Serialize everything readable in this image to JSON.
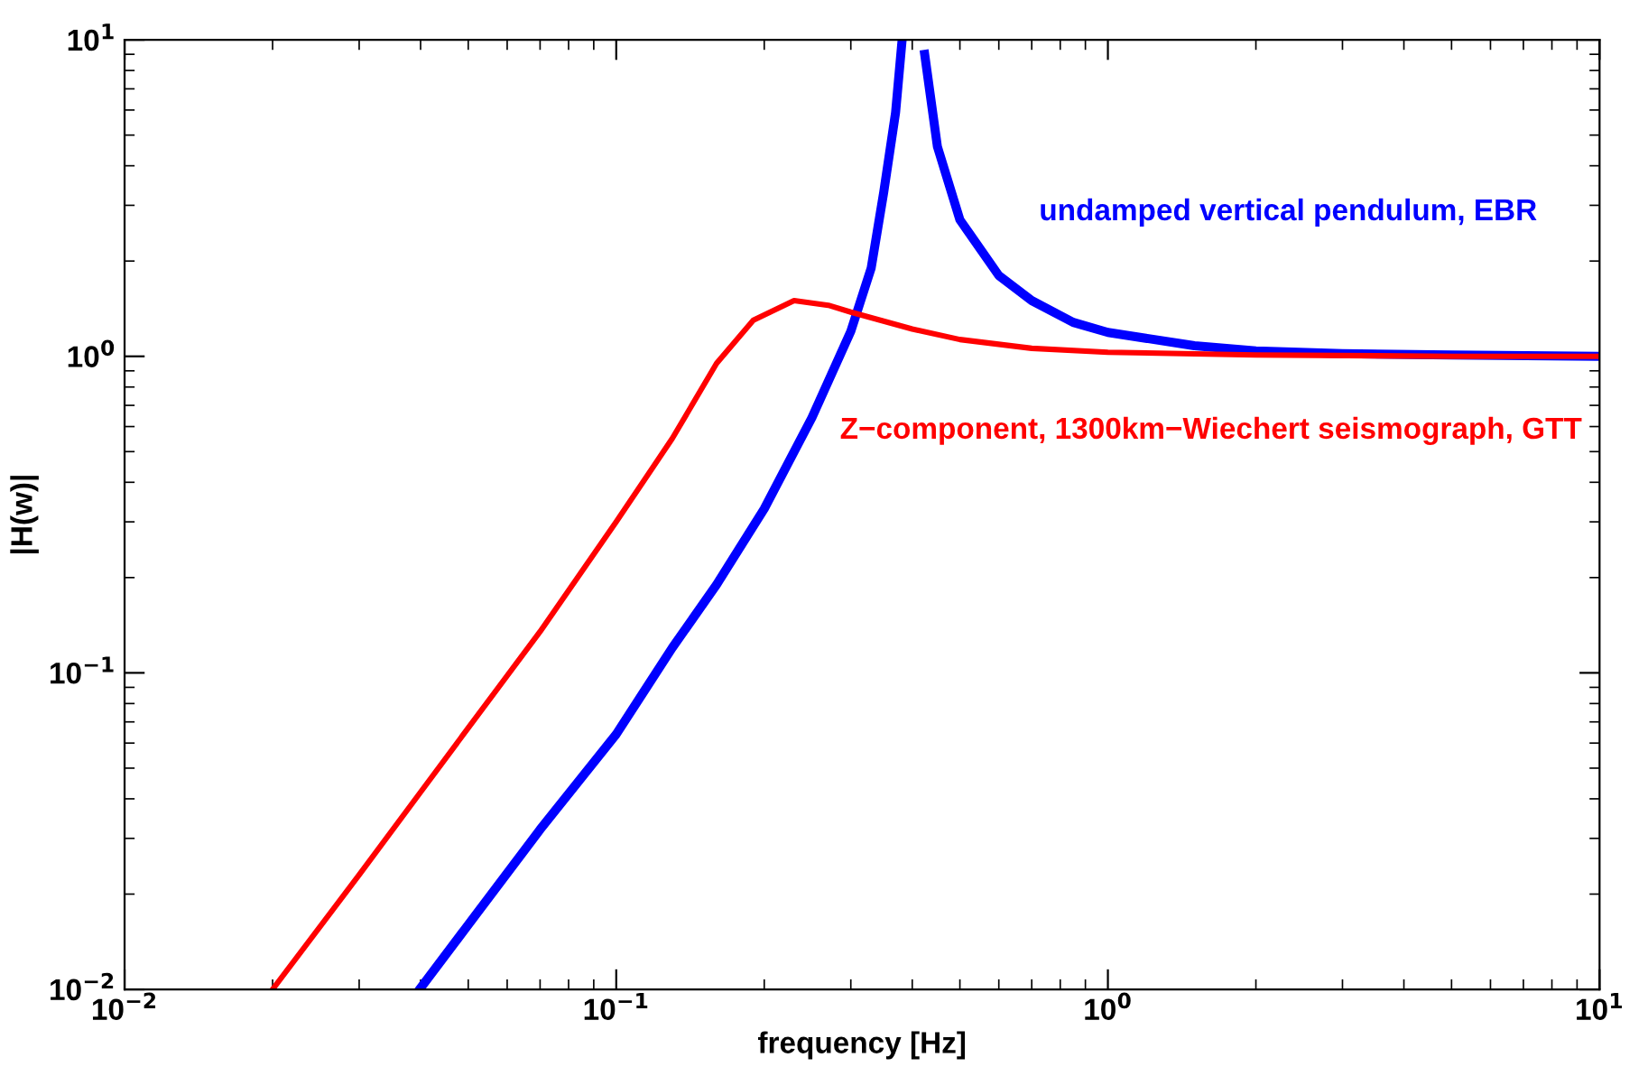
{
  "chart_data": {
    "type": "line",
    "xlabel": "frequency [Hz]",
    "ylabel": "|H(w)|",
    "log": "xy",
    "grid": false,
    "legend": false,
    "marker": "none",
    "line_style": "solid",
    "xlim": [
      0.01,
      10
    ],
    "ylim": [
      0.01,
      10
    ],
    "xticks": [
      {
        "value": 0.01,
        "label": "10$^{−2}$"
      },
      {
        "value": 0.1,
        "label": "10$^{−1}$"
      },
      {
        "value": 1,
        "label": "10$^{0}$"
      },
      {
        "value": 10,
        "label": "10$^{1}$"
      }
    ],
    "yticks": [
      {
        "value": 0.01,
        "label": "10$^{−2}$"
      },
      {
        "value": 0.1,
        "label": "10$^{−1}$"
      },
      {
        "value": 1,
        "label": "10$^{0}$"
      },
      {
        "value": 10,
        "label": "10$^{1}$"
      }
    ],
    "series": [
      {
        "name": "undamped vertical pendulum, EBR",
        "color": "#0000ff",
        "x": [
          0.04,
          0.05,
          0.07,
          0.1,
          0.13,
          0.16,
          0.2,
          0.25,
          0.3,
          0.33,
          0.35,
          0.37,
          0.381,
          0.4,
          0.424,
          0.45,
          0.5,
          0.6,
          0.7,
          0.85,
          1,
          1.5,
          2,
          3,
          5,
          10
        ],
        "values": [
          0.0101,
          0.016,
          0.032,
          0.064,
          0.12,
          0.19,
          0.33,
          0.64,
          1.2,
          1.9,
          3.3,
          5.9,
          9.8,
          null,
          9.0,
          4.6,
          2.7,
          1.8,
          1.5,
          1.28,
          1.19,
          1.08,
          1.04,
          1.02,
          1.01,
          1.0
        ]
      },
      {
        "name": "Z−component, 1300km−Wiechert seismograph, GTT",
        "color": "#ff0000",
        "x": [
          0.02,
          0.03,
          0.04,
          0.05,
          0.07,
          0.1,
          0.13,
          0.16,
          0.19,
          0.23,
          0.27,
          0.3,
          0.4,
          0.5,
          0.7,
          1,
          2,
          5,
          10
        ],
        "values": [
          0.01,
          0.023,
          0.042,
          0.067,
          0.135,
          0.3,
          0.55,
          0.95,
          1.3,
          1.5,
          1.45,
          1.38,
          1.22,
          1.13,
          1.06,
          1.03,
          1.01,
          1.0,
          1.0
        ]
      }
    ]
  }
}
